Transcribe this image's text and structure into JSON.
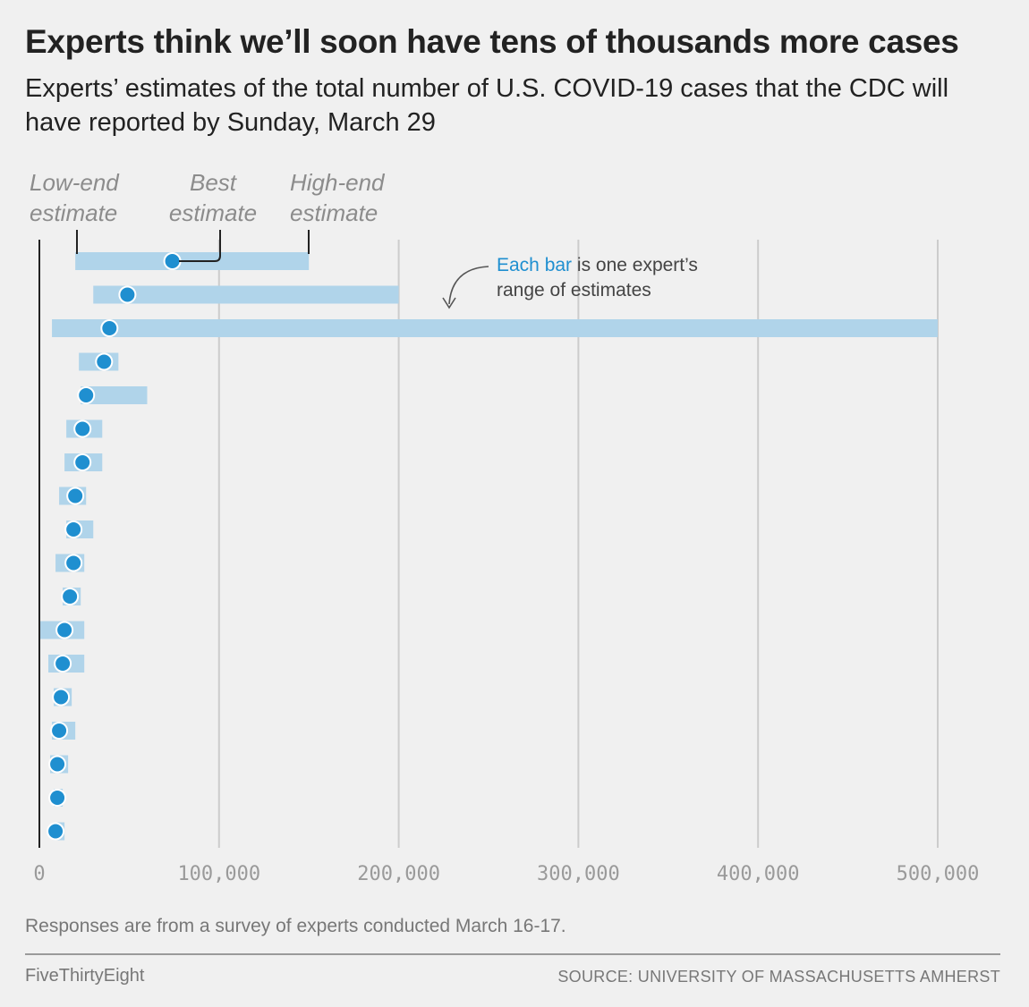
{
  "header": {
    "title": "Experts think we’ll soon have tens of thousands more cases",
    "subtitle": "Experts’ estimates of the total number of U.S. COVID-19 cases that the CDC will have reported by Sunday, March 29"
  },
  "legend": {
    "low_line1": "Low-end",
    "low_line2": "estimate",
    "best_line1": "Best",
    "best_line2": "estimate",
    "high_line1": "High-end",
    "high_line2": "estimate"
  },
  "annotation": {
    "highlight": "Each bar",
    "rest_line1": " is one expert’s",
    "line2": "range of estimates"
  },
  "footer": {
    "note": "Responses are from a survey of experts conducted March 16-17.",
    "brand": "FiveThirtyEight",
    "source": "SOURCE: UNIVERSITY OF MASSACHUSETTS AMHERST"
  },
  "colors": {
    "bar": "#b0d4ea",
    "dot": "#1f8fd0",
    "grid": "#cccccc",
    "axis": "#222222",
    "highlight": "#1f8fd0"
  },
  "chart_data": {
    "type": "range-dot",
    "xlim": [
      0,
      500000
    ],
    "xticks": [
      0,
      100000,
      200000,
      300000,
      400000,
      500000
    ],
    "xtick_labels": [
      "0",
      "100,000",
      "200,000",
      "300,000",
      "400,000",
      "500,000"
    ],
    "series": [
      {
        "name": "Low-end estimate",
        "values": [
          20000,
          30000,
          7000,
          22000,
          23000,
          15000,
          14000,
          11000,
          15000,
          9000,
          13000,
          0,
          5000,
          8000,
          7000,
          6000,
          8000,
          8000
        ]
      },
      {
        "name": "Best estimate",
        "values": [
          74000,
          49000,
          39000,
          36000,
          26000,
          24000,
          24000,
          20000,
          19000,
          19000,
          17000,
          14000,
          13000,
          12000,
          11000,
          10000,
          10000,
          9000
        ]
      },
      {
        "name": "High-end estimate",
        "values": [
          150000,
          200000,
          500000,
          44000,
          60000,
          35000,
          35000,
          26000,
          30000,
          25000,
          23000,
          25000,
          25000,
          18000,
          20000,
          16000,
          13000,
          14000
        ]
      }
    ]
  }
}
